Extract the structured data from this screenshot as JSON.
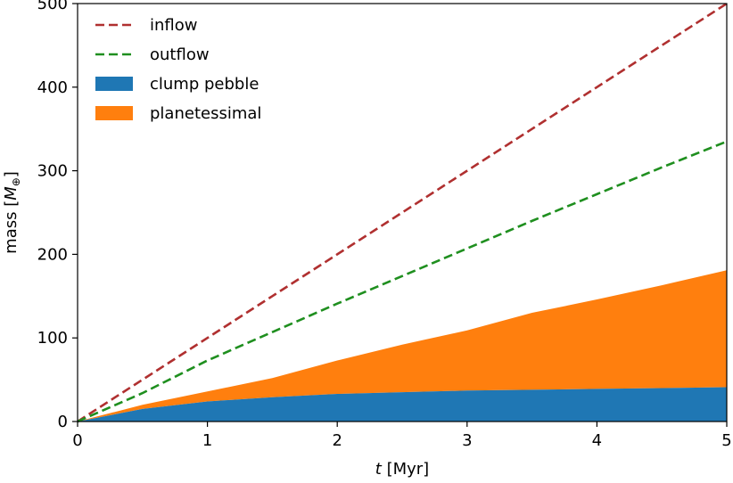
{
  "chart_data": {
    "type": "area",
    "x_unit_note": "",
    "xlabel_italic": "t",
    "xlabel_rest": " [Myr]",
    "ylabel_prefix": "mass [",
    "ylabel_symbol": "M",
    "ylabel_sub": "⊕",
    "ylabel_suffix": "]",
    "xlim": [
      0,
      5
    ],
    "ylim": [
      0,
      500
    ],
    "xticks": [
      0,
      1,
      2,
      3,
      4,
      5
    ],
    "xtick_labels": [
      "0",
      "1",
      "2",
      "3",
      "4",
      "5"
    ],
    "yticks": [
      0,
      100,
      200,
      300,
      400,
      500
    ],
    "ytick_labels": [
      "0",
      "100",
      "200",
      "300",
      "400",
      "500"
    ],
    "grid": false,
    "legend_position": "upper-left",
    "x": [
      0,
      0.5,
      1,
      1.5,
      2,
      2.5,
      3,
      3.5,
      4,
      4.5,
      5
    ],
    "series": [
      {
        "name": "inflow",
        "style": "dashed-line",
        "color": "#b03030",
        "values": [
          0,
          50,
          100,
          150,
          200,
          250,
          300,
          350,
          400,
          450,
          500
        ]
      },
      {
        "name": "outflow",
        "style": "dashed-line",
        "color": "#1f8f1f",
        "values": [
          0,
          34,
          73,
          107,
          141,
          174,
          207,
          240,
          272,
          304,
          335
        ]
      },
      {
        "name": "clump pebble",
        "style": "area",
        "color": "#1f77b4",
        "values": [
          0,
          15,
          24,
          29,
          33,
          35,
          37,
          38,
          39,
          40,
          41
        ]
      },
      {
        "name": "planetessimal",
        "style": "stacked-area",
        "color": "#ff7f0e",
        "values": [
          0,
          5,
          12,
          23,
          40,
          57,
          72,
          92,
          107,
          123,
          140
        ]
      }
    ]
  }
}
